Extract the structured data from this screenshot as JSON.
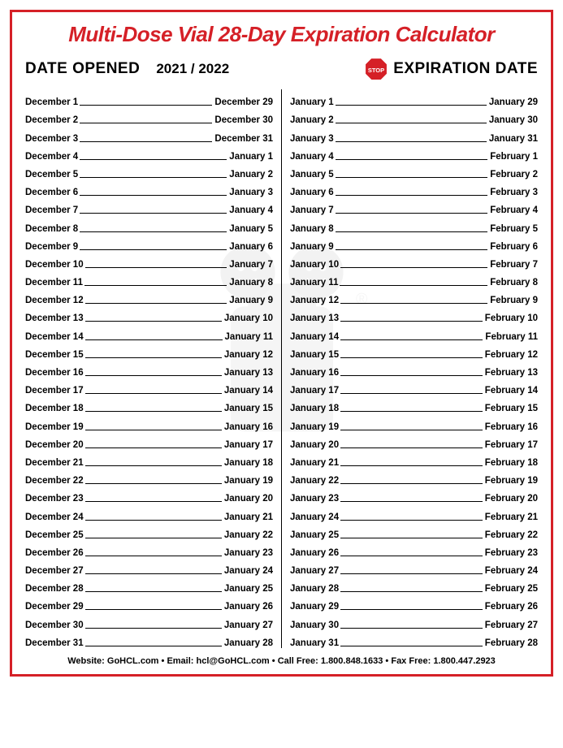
{
  "title": "Multi-Dose Vial 28-Day Expiration Calculator",
  "header_opened": "DATE OPENED",
  "header_years": "2021 / 2022",
  "header_expiration": "EXPIRATION DATE",
  "stop_text": "STOP",
  "colors": {
    "frame": "#d52027",
    "title": "#d52027",
    "stop_fill": "#d52027",
    "stop_text": "#ffffff",
    "text": "#000000",
    "rule": "#000000"
  },
  "typography": {
    "title_fontsize": 26,
    "title_italic": true,
    "header_fontsize": 19,
    "row_fontsize": 11.5,
    "footer_fontsize": 11
  },
  "left_column": [
    {
      "open": "December 1",
      "expire": "December 29"
    },
    {
      "open": "December 2",
      "expire": "December 30"
    },
    {
      "open": "December 3",
      "expire": "December 31"
    },
    {
      "open": "December 4",
      "expire": "January 1"
    },
    {
      "open": "December 5",
      "expire": "January 2"
    },
    {
      "open": "December 6",
      "expire": "January 3"
    },
    {
      "open": "December 7",
      "expire": "January 4"
    },
    {
      "open": "December 8",
      "expire": "January 5"
    },
    {
      "open": "December 9",
      "expire": "January 6"
    },
    {
      "open": "December 10",
      "expire": "January 7"
    },
    {
      "open": "December 11",
      "expire": "January 8"
    },
    {
      "open": "December 12",
      "expire": "January 9"
    },
    {
      "open": "December 13",
      "expire": "January 10"
    },
    {
      "open": "December 14",
      "expire": "January 11"
    },
    {
      "open": "December 15",
      "expire": "January 12"
    },
    {
      "open": "December 16",
      "expire": "January 13"
    },
    {
      "open": "December 17",
      "expire": "January 14"
    },
    {
      "open": "December 18",
      "expire": "January 15"
    },
    {
      "open": "December 19",
      "expire": "January 16"
    },
    {
      "open": "December 20",
      "expire": "January 17"
    },
    {
      "open": "December 21",
      "expire": "January 18"
    },
    {
      "open": "December 22",
      "expire": "January 19"
    },
    {
      "open": "December 23",
      "expire": "January 20"
    },
    {
      "open": "December 24",
      "expire": "January 21"
    },
    {
      "open": "December 25",
      "expire": "January 22"
    },
    {
      "open": "December 26",
      "expire": "January 23"
    },
    {
      "open": "December 27",
      "expire": "January 24"
    },
    {
      "open": "December 28",
      "expire": "January 25"
    },
    {
      "open": "December 29",
      "expire": "January 26"
    },
    {
      "open": "December 30",
      "expire": "January 27"
    },
    {
      "open": "December 31",
      "expire": "January 28"
    }
  ],
  "right_column": [
    {
      "open": "January 1",
      "expire": "January 29"
    },
    {
      "open": "January 2",
      "expire": "January 30"
    },
    {
      "open": "January 3",
      "expire": "January 31"
    },
    {
      "open": "January 4",
      "expire": "February 1"
    },
    {
      "open": "January 5",
      "expire": "February 2"
    },
    {
      "open": "January 6",
      "expire": "February 3"
    },
    {
      "open": "January 7",
      "expire": "February 4"
    },
    {
      "open": "January 8",
      "expire": "February 5"
    },
    {
      "open": "January 9",
      "expire": "February 6"
    },
    {
      "open": "January 10",
      "expire": "February 7"
    },
    {
      "open": "January 11",
      "expire": "February 8"
    },
    {
      "open": "January 12",
      "expire": "February 9"
    },
    {
      "open": "January 13",
      "expire": "February 10"
    },
    {
      "open": "January 14",
      "expire": "February 11"
    },
    {
      "open": "January 15",
      "expire": "February 12"
    },
    {
      "open": "January 16",
      "expire": "February 13"
    },
    {
      "open": "January 17",
      "expire": "February 14"
    },
    {
      "open": "January 18",
      "expire": "February 15"
    },
    {
      "open": "January 19",
      "expire": "February 16"
    },
    {
      "open": "January 20",
      "expire": "February 17"
    },
    {
      "open": "January 21",
      "expire": "February 18"
    },
    {
      "open": "January 22",
      "expire": "February 19"
    },
    {
      "open": "January 23",
      "expire": "February 20"
    },
    {
      "open": "January 24",
      "expire": "February 21"
    },
    {
      "open": "January 25",
      "expire": "February 22"
    },
    {
      "open": "January 26",
      "expire": "February 23"
    },
    {
      "open": "January 27",
      "expire": "February 24"
    },
    {
      "open": "January 28",
      "expire": "February 25"
    },
    {
      "open": "January 29",
      "expire": "February 26"
    },
    {
      "open": "January 30",
      "expire": "February 27"
    },
    {
      "open": "January 31",
      "expire": "February 28"
    }
  ],
  "footer": {
    "website_label": "Website:",
    "website": "GoHCL.com",
    "email_label": "Email:",
    "email": "hcl@GoHCL.com",
    "call_label": "Call Free:",
    "call": "1.800.848.1633",
    "fax_label": "Fax Free:",
    "fax": "1.800.447.2923",
    "sep": " • "
  }
}
